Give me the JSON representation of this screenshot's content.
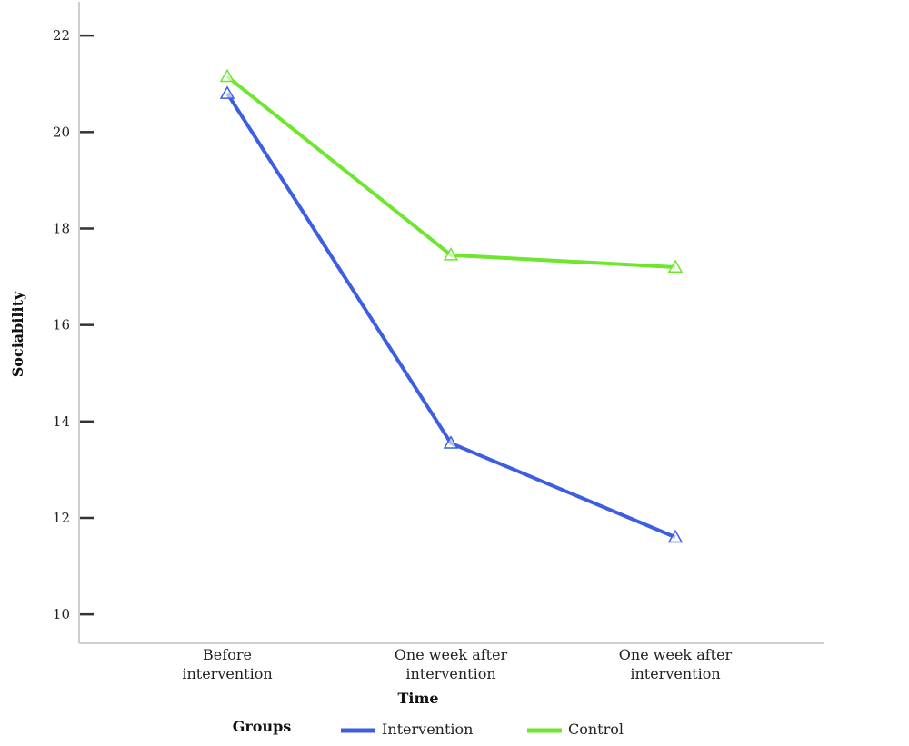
{
  "chart_data": {
    "type": "line",
    "categories": [
      [
        "Before",
        "intervention"
      ],
      [
        "One week after",
        "intervention"
      ],
      [
        "One week after",
        "intervention"
      ]
    ],
    "series": [
      {
        "name": "Intervention",
        "values": [
          20.8,
          13.55,
          11.6
        ],
        "color": "#3d5ee0"
      },
      {
        "name": "Control",
        "values": [
          21.15,
          17.45,
          17.2
        ],
        "color": "#6ee62e"
      }
    ],
    "xlabel": "Time",
    "ylabel": "Sociability",
    "ylim": [
      9.4,
      22.7
    ],
    "yticks": [
      10,
      12,
      14,
      16,
      18,
      20,
      22
    ],
    "marker": "open-triangle",
    "grid": false,
    "legend": {
      "title": "Groups",
      "placement": "bottom"
    }
  }
}
